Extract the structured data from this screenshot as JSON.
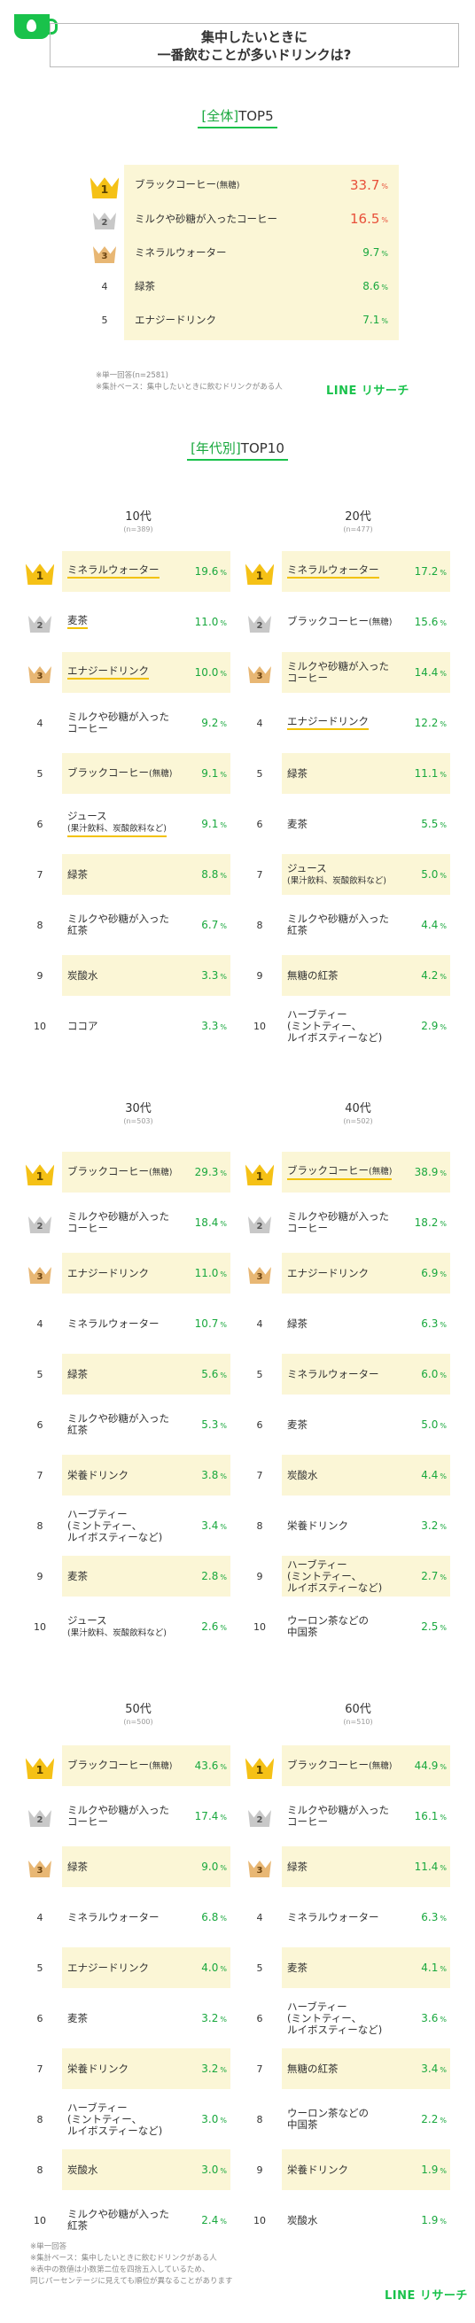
{
  "header": {
    "title_line1": "集中したいときに",
    "title_line2": "一番飲むことが多いドリンクは?"
  },
  "overall": {
    "label": "[全体]",
    "suffix": "TOP5",
    "note_line1": "※単一回答(n=2581)",
    "note_line2": "※集計ベース：集中したいときに飲むドリンクがある人",
    "logo": "LINE リサーチ"
  },
  "age_section": {
    "label": "[年代別]",
    "suffix": "TOP10"
  },
  "footer": {
    "note_line1": "※単一回答",
    "note_line2": "※集計ベース：集中したいときに飲むドリンクがある人",
    "note_line3": "※表中の数値は小数第二位を四捨五入しているため、",
    "note_line4": "同じパーセンテージに見えても順位が異なることがあります",
    "logo": "LINE リサーチ"
  },
  "colors": {
    "accent_green": "#19c24b",
    "value_green": "#19a83e",
    "highlight": "#fbf6d6",
    "top_value": "#e8503a"
  },
  "chart_data": [
    {
      "type": "table",
      "group": "全体",
      "rows": [
        {
          "rank": "1",
          "name": "ブラックコーヒー",
          "sub": "(無糖)",
          "value": 33.7,
          "display": "33.7"
        },
        {
          "rank": "2",
          "name": "ミルクや砂糖が入ったコーヒー",
          "sub": "",
          "value": 16.5,
          "display": "16.5"
        },
        {
          "rank": "3",
          "name": "ミネラルウォーター",
          "sub": "",
          "value": 9.7,
          "display": "9.7"
        },
        {
          "rank": "4",
          "name": "緑茶",
          "sub": "",
          "value": 8.6,
          "display": "8.6"
        },
        {
          "rank": "5",
          "name": "エナジードリンク",
          "sub": "",
          "value": 7.1,
          "display": "7.1"
        }
      ]
    },
    {
      "type": "table",
      "group": "10代",
      "n": "(n=389)",
      "rows": [
        {
          "rank": "1",
          "name": "ミネラルウォーター",
          "sub": "",
          "value": 19.6,
          "display": "19.6",
          "ul": true
        },
        {
          "rank": "2",
          "name": "麦茶",
          "sub": "",
          "value": 11.0,
          "display": "11.0",
          "ul": true
        },
        {
          "rank": "3",
          "name": "エナジードリンク",
          "sub": "",
          "value": 10.0,
          "display": "10.0",
          "ul": true
        },
        {
          "rank": "4",
          "name": "ミルクや砂糖が入った\nコーヒー",
          "sub": "",
          "value": 9.2,
          "display": "9.2"
        },
        {
          "rank": "5",
          "name": "ブラックコーヒー",
          "sub": "(無糖)",
          "value": 9.1,
          "display": "9.1"
        },
        {
          "rank": "6",
          "name": "ジュース",
          "sub": "(果汁飲料、炭酸飲料など)",
          "value": 9.1,
          "display": "9.1",
          "ul": true
        },
        {
          "rank": "7",
          "name": "緑茶",
          "sub": "",
          "value": 8.8,
          "display": "8.8"
        },
        {
          "rank": "8",
          "name": "ミルクや砂糖が入った\n紅茶",
          "sub": "",
          "value": 6.7,
          "display": "6.7"
        },
        {
          "rank": "9",
          "name": "炭酸水",
          "sub": "",
          "value": 3.3,
          "display": "3.3"
        },
        {
          "rank": "10",
          "name": "ココア",
          "sub": "",
          "value": 3.3,
          "display": "3.3"
        }
      ]
    },
    {
      "type": "table",
      "group": "20代",
      "n": "(n=477)",
      "rows": [
        {
          "rank": "1",
          "name": "ミネラルウォーター",
          "sub": "",
          "value": 17.2,
          "display": "17.2",
          "ul": true
        },
        {
          "rank": "2",
          "name": "ブラックコーヒー",
          "sub": "(無糖)",
          "value": 15.6,
          "display": "15.6"
        },
        {
          "rank": "3",
          "name": "ミルクや砂糖が入った\nコーヒー",
          "sub": "",
          "value": 14.4,
          "display": "14.4"
        },
        {
          "rank": "4",
          "name": "エナジードリンク",
          "sub": "",
          "value": 12.2,
          "display": "12.2",
          "ul": true
        },
        {
          "rank": "5",
          "name": "緑茶",
          "sub": "",
          "value": 11.1,
          "display": "11.1"
        },
        {
          "rank": "6",
          "name": "麦茶",
          "sub": "",
          "value": 5.5,
          "display": "5.5"
        },
        {
          "rank": "7",
          "name": "ジュース",
          "sub": "(果汁飲料、炭酸飲料など)",
          "value": 5.0,
          "display": "5.0"
        },
        {
          "rank": "8",
          "name": "ミルクや砂糖が入った\n紅茶",
          "sub": "",
          "value": 4.4,
          "display": "4.4"
        },
        {
          "rank": "9",
          "name": "無糖の紅茶",
          "sub": "",
          "value": 4.2,
          "display": "4.2"
        },
        {
          "rank": "10",
          "name": "ハーブティー\n(ミントティー、\nルイボスティーなど)",
          "sub": "",
          "value": 2.9,
          "display": "2.9"
        }
      ]
    },
    {
      "type": "table",
      "group": "30代",
      "n": "(n=503)",
      "rows": [
        {
          "rank": "1",
          "name": "ブラックコーヒー",
          "sub": "(無糖)",
          "value": 29.3,
          "display": "29.3"
        },
        {
          "rank": "2",
          "name": "ミルクや砂糖が入った\nコーヒー",
          "sub": "",
          "value": 18.4,
          "display": "18.4"
        },
        {
          "rank": "3",
          "name": "エナジードリンク",
          "sub": "",
          "value": 11.0,
          "display": "11.0"
        },
        {
          "rank": "4",
          "name": "ミネラルウォーター",
          "sub": "",
          "value": 10.7,
          "display": "10.7"
        },
        {
          "rank": "5",
          "name": "緑茶",
          "sub": "",
          "value": 5.6,
          "display": "5.6"
        },
        {
          "rank": "6",
          "name": "ミルクや砂糖が入った\n紅茶",
          "sub": "",
          "value": 5.3,
          "display": "5.3"
        },
        {
          "rank": "7",
          "name": "栄養ドリンク",
          "sub": "",
          "value": 3.8,
          "display": "3.8"
        },
        {
          "rank": "8",
          "name": "ハーブティー\n(ミントティー、\nルイボスティーなど)",
          "sub": "",
          "value": 3.4,
          "display": "3.4"
        },
        {
          "rank": "9",
          "name": "麦茶",
          "sub": "",
          "value": 2.8,
          "display": "2.8"
        },
        {
          "rank": "10",
          "name": "ジュース",
          "sub": "(果汁飲料、炭酸飲料など)",
          "value": 2.6,
          "display": "2.6"
        }
      ]
    },
    {
      "type": "table",
      "group": "40代",
      "n": "(n=502)",
      "rows": [
        {
          "rank": "1",
          "name": "ブラックコーヒー",
          "sub": "(無糖)",
          "value": 38.9,
          "display": "38.9",
          "ul": true
        },
        {
          "rank": "2",
          "name": "ミルクや砂糖が入った\nコーヒー",
          "sub": "",
          "value": 18.2,
          "display": "18.2"
        },
        {
          "rank": "3",
          "name": "エナジードリンク",
          "sub": "",
          "value": 6.9,
          "display": "6.9"
        },
        {
          "rank": "4",
          "name": "緑茶",
          "sub": "",
          "value": 6.3,
          "display": "6.3"
        },
        {
          "rank": "5",
          "name": "ミネラルウォーター",
          "sub": "",
          "value": 6.0,
          "display": "6.0"
        },
        {
          "rank": "6",
          "name": "麦茶",
          "sub": "",
          "value": 5.0,
          "display": "5.0"
        },
        {
          "rank": "7",
          "name": "炭酸水",
          "sub": "",
          "value": 4.4,
          "display": "4.4"
        },
        {
          "rank": "8",
          "name": "栄養ドリンク",
          "sub": "",
          "value": 3.2,
          "display": "3.2"
        },
        {
          "rank": "9",
          "name": "ハーブティー\n(ミントティー、\nルイボスティーなど)",
          "sub": "",
          "value": 2.7,
          "display": "2.7"
        },
        {
          "rank": "10",
          "name": "ウーロン茶などの\n中国茶",
          "sub": "",
          "value": 2.5,
          "display": "2.5"
        }
      ]
    },
    {
      "type": "table",
      "group": "50代",
      "n": "(n=500)",
      "rows": [
        {
          "rank": "1",
          "name": "ブラックコーヒー",
          "sub": "(無糖)",
          "value": 43.6,
          "display": "43.6"
        },
        {
          "rank": "2",
          "name": "ミルクや砂糖が入った\nコーヒー",
          "sub": "",
          "value": 17.4,
          "display": "17.4"
        },
        {
          "rank": "3",
          "name": "緑茶",
          "sub": "",
          "value": 9.0,
          "display": "9.0"
        },
        {
          "rank": "4",
          "name": "ミネラルウォーター",
          "sub": "",
          "value": 6.8,
          "display": "6.8"
        },
        {
          "rank": "5",
          "name": "エナジードリンク",
          "sub": "",
          "value": 4.0,
          "display": "4.0"
        },
        {
          "rank": "6",
          "name": "麦茶",
          "sub": "",
          "value": 3.2,
          "display": "3.2"
        },
        {
          "rank": "7",
          "name": "栄養ドリンク",
          "sub": "",
          "value": 3.2,
          "display": "3.2"
        },
        {
          "rank": "8",
          "name": "ハーブティー\n(ミントティー、\nルイボスティーなど)",
          "sub": "",
          "value": 3.0,
          "display": "3.0"
        },
        {
          "rank": "8",
          "name": "炭酸水",
          "sub": "",
          "value": 3.0,
          "display": "3.0"
        },
        {
          "rank": "10",
          "name": "ミルクや砂糖が入った\n紅茶",
          "sub": "",
          "value": 2.4,
          "display": "2.4"
        }
      ]
    },
    {
      "type": "table",
      "group": "60代",
      "n": "(n=510)",
      "rows": [
        {
          "rank": "1",
          "name": "ブラックコーヒー",
          "sub": "(無糖)",
          "value": 44.9,
          "display": "44.9"
        },
        {
          "rank": "2",
          "name": "ミルクや砂糖が入った\nコーヒー",
          "sub": "",
          "value": 16.1,
          "display": "16.1"
        },
        {
          "rank": "3",
          "name": "緑茶",
          "sub": "",
          "value": 11.4,
          "display": "11.4"
        },
        {
          "rank": "4",
          "name": "ミネラルウォーター",
          "sub": "",
          "value": 6.3,
          "display": "6.3"
        },
        {
          "rank": "5",
          "name": "麦茶",
          "sub": "",
          "value": 4.1,
          "display": "4.1"
        },
        {
          "rank": "6",
          "name": "ハーブティー\n(ミントティー、\nルイボスティーなど)",
          "sub": "",
          "value": 3.6,
          "display": "3.6"
        },
        {
          "rank": "7",
          "name": "無糖の紅茶",
          "sub": "",
          "value": 3.4,
          "display": "3.4"
        },
        {
          "rank": "8",
          "name": "ウーロン茶などの\n中国茶",
          "sub": "",
          "value": 2.2,
          "display": "2.2"
        },
        {
          "rank": "9",
          "name": "栄養ドリンク",
          "sub": "",
          "value": 1.9,
          "display": "1.9"
        },
        {
          "rank": "10",
          "name": "炭酸水",
          "sub": "",
          "value": 1.9,
          "display": "1.9"
        }
      ]
    }
  ]
}
